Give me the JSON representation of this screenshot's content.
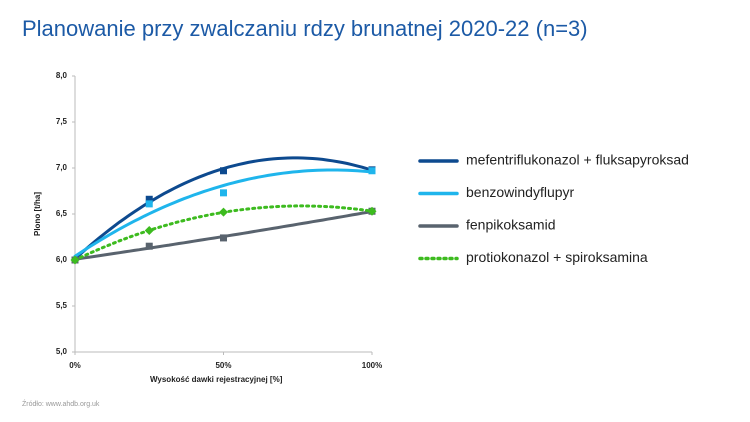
{
  "chart_data": {
    "type": "scatter",
    "title": "Planowanie przy zwalczaniu rdzy brunatnej 2020-22 (n=3)",
    "x_label": "Wysokość dawki rejestracyjnej [%]",
    "y_label": "Plono [t/ha]",
    "source": "Źródło:  www.ahdb.org.uk",
    "x": [
      0,
      25,
      50,
      100
    ],
    "series": [
      {
        "name": "mefentriflukonazol + fluksapyroksad",
        "color": "#0d4a8f",
        "marker": "square",
        "dash": false,
        "values": [
          6.0,
          6.66,
          6.97,
          6.98
        ]
      },
      {
        "name": "benzowindyflupyr",
        "color": "#1fb5ec",
        "marker": "square",
        "dash": false,
        "values": [
          6.0,
          6.61,
          6.73,
          6.97
        ]
      },
      {
        "name": "fenpikoksamid",
        "color": "#59636e",
        "marker": "square",
        "dash": false,
        "values": [
          6.0,
          6.15,
          6.24,
          6.53
        ]
      },
      {
        "name": "protiokonazol + spiroksamina",
        "color": "#3dbb1f",
        "marker": "diamond",
        "dash": true,
        "values": [
          6.0,
          6.32,
          6.52,
          6.53
        ]
      }
    ],
    "xlim": [
      0,
      100
    ],
    "xticks": [
      {
        "value": 0,
        "label": "0%"
      },
      {
        "value": 50,
        "label": "50%"
      },
      {
        "value": 100,
        "label": "100%"
      }
    ],
    "ylim": [
      5,
      8
    ],
    "yticks": [
      {
        "value": 5,
        "label": "5,0"
      },
      {
        "value": 5.5,
        "label": "5,5"
      },
      {
        "value": 6,
        "label": "6,0"
      },
      {
        "value": 6.5,
        "label": "6,5"
      },
      {
        "value": 7,
        "label": "7,0"
      },
      {
        "value": 7.5,
        "label": "7,5"
      },
      {
        "value": 8,
        "label": "8,0"
      }
    ],
    "trendline": "quadratic"
  }
}
